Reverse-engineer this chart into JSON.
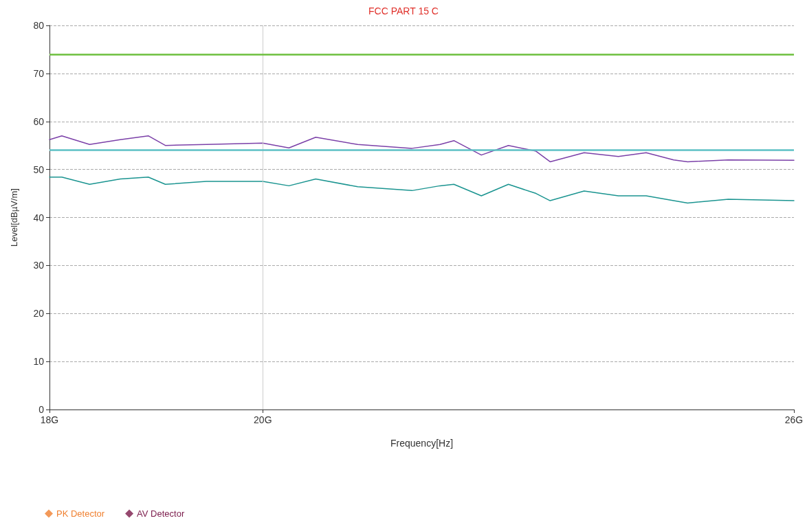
{
  "chart_data": {
    "type": "line",
    "title": "FCC PART 15 C",
    "xlabel": "Frequency[Hz]",
    "ylabel": "Level[dBµV/m]",
    "x": [
      18.0,
      18.11,
      18.36,
      18.64,
      18.9,
      19.06,
      19.45,
      20.0,
      20.26,
      20.53,
      20.96,
      21.53,
      21.83,
      21.98,
      22.28,
      22.58,
      22.89,
      23.05,
      23.44,
      23.84,
      24.17,
      24.5,
      24.67,
      25.17,
      26.0
    ],
    "series": [
      {
        "color": "#7b40a8",
        "values": [
          56.2,
          57,
          55.2,
          56.2,
          57,
          55,
          55.2,
          55.5,
          54.5,
          56.7,
          55.2,
          54.4,
          55.2,
          56,
          53,
          55,
          53.8,
          51.6,
          53.5,
          52.7,
          53.5,
          52,
          51.6,
          52,
          51.9
        ]
      },
      {
        "color": "#1a9490",
        "values": [
          48.4,
          48.4,
          46.9,
          48,
          48.4,
          46.9,
          47.5,
          47.5,
          46.6,
          48,
          46.4,
          45.6,
          46.6,
          46.9,
          44.5,
          46.9,
          45,
          43.5,
          45.5,
          44.5,
          44.5,
          43.5,
          43,
          43.8,
          43.5
        ]
      },
      {
        "name": "PK Detector",
        "type": "scatter",
        "marker": "diamond",
        "color": "#f08030",
        "values": [
          null,
          null,
          null,
          null,
          null,
          null,
          null,
          null,
          null,
          null,
          null,
          null,
          null,
          null,
          null,
          null,
          null,
          null,
          null,
          null,
          null,
          null,
          null,
          null,
          null
        ]
      },
      {
        "name": "AV Detector",
        "type": "scatter",
        "marker": "diamond",
        "color": "#7a1a4a",
        "values": [
          null,
          null,
          null,
          null,
          null,
          null,
          null,
          null,
          null,
          null,
          null,
          null,
          null,
          null,
          null,
          null,
          null,
          null,
          null,
          null,
          null,
          null,
          null,
          null,
          null
        ]
      }
    ],
    "log": "x",
    "xlim": [
      18,
      26
    ],
    "xticks": [
      {
        "value": 18,
        "label": "18G"
      },
      {
        "value": 20,
        "label": "20G"
      },
      {
        "value": 26,
        "label": "26G"
      }
    ],
    "ylim": [
      0,
      80
    ],
    "yticks": [
      0,
      10,
      20,
      30,
      40,
      50,
      60,
      70,
      80
    ],
    "ref_lines": [
      {
        "axis": "x",
        "value": 20,
        "color": "#cccccc"
      },
      {
        "axis": "y",
        "value": 74,
        "color": "#6cbf3c"
      },
      {
        "axis": "y",
        "value": 54,
        "color": "#5cc0c4"
      }
    ],
    "grid": "y",
    "legend": "bottom left",
    "marker": "none",
    "line_style": "solid"
  }
}
